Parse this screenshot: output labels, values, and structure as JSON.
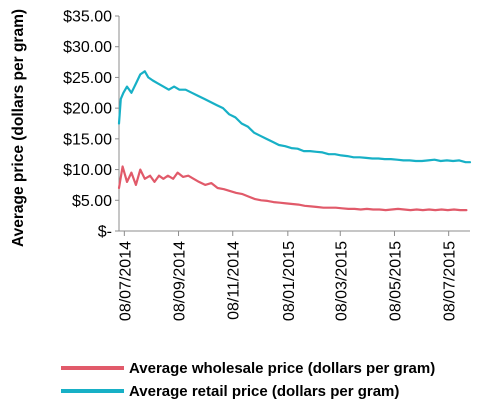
{
  "chart_data": {
    "type": "line",
    "title": "",
    "xlabel": "",
    "ylabel": "Average price (dollars per gram)",
    "ylim": [
      0,
      35
    ],
    "y_ticks": [
      0,
      5,
      10,
      15,
      20,
      25,
      30,
      35
    ],
    "y_tick_labels": [
      "$-",
      "$5.00",
      "$10.00",
      "$15.00",
      "$20.00",
      "$25.00",
      "$30.00",
      "$35.00"
    ],
    "x_range": [
      "2014-08-01",
      "2015-08-31"
    ],
    "x_ticks": [
      "2014-08-07",
      "2014-10-07",
      "2014-12-07",
      "2015-02-07",
      "2015-04-07",
      "2015-06-07",
      "2015-08-07"
    ],
    "x_tick_labels": [
      "08/07/2014",
      "08/09/2014",
      "08/11/2014",
      "08/01/2015",
      "08/03/2015",
      "08/05/2015",
      "08/07/2015"
    ],
    "grid": false,
    "legend_position": "bottom",
    "series": [
      {
        "name": "Average wholesale price (dollars per gram)",
        "color": "#e15a6a",
        "points": [
          [
            "2014-08-01",
            7.0
          ],
          [
            "2014-08-05",
            10.5
          ],
          [
            "2014-08-10",
            8.0
          ],
          [
            "2014-08-15",
            9.5
          ],
          [
            "2014-08-20",
            7.5
          ],
          [
            "2014-08-25",
            10.0
          ],
          [
            "2014-08-30",
            8.5
          ],
          [
            "2014-09-05",
            9.0
          ],
          [
            "2014-09-10",
            8.0
          ],
          [
            "2014-09-15",
            9.0
          ],
          [
            "2014-09-20",
            8.5
          ],
          [
            "2014-09-25",
            9.0
          ],
          [
            "2014-10-01",
            8.5
          ],
          [
            "2014-10-06",
            9.5
          ],
          [
            "2014-10-12",
            8.8
          ],
          [
            "2014-10-18",
            9.0
          ],
          [
            "2014-10-24",
            8.5
          ],
          [
            "2014-10-30",
            8.0
          ],
          [
            "2014-11-06",
            7.5
          ],
          [
            "2014-11-13",
            7.8
          ],
          [
            "2014-11-20",
            7.0
          ],
          [
            "2014-11-27",
            6.8
          ],
          [
            "2014-12-04",
            6.5
          ],
          [
            "2014-12-11",
            6.2
          ],
          [
            "2014-12-18",
            6.0
          ],
          [
            "2014-12-25",
            5.6
          ],
          [
            "2015-01-01",
            5.2
          ],
          [
            "2015-01-08",
            5.0
          ],
          [
            "2015-01-15",
            4.9
          ],
          [
            "2015-01-22",
            4.7
          ],
          [
            "2015-01-29",
            4.6
          ],
          [
            "2015-02-05",
            4.5
          ],
          [
            "2015-02-12",
            4.4
          ],
          [
            "2015-02-19",
            4.3
          ],
          [
            "2015-02-26",
            4.1
          ],
          [
            "2015-03-05",
            4.0
          ],
          [
            "2015-03-12",
            3.9
          ],
          [
            "2015-03-19",
            3.8
          ],
          [
            "2015-03-26",
            3.8
          ],
          [
            "2015-04-02",
            3.8
          ],
          [
            "2015-04-09",
            3.7
          ],
          [
            "2015-04-16",
            3.6
          ],
          [
            "2015-04-23",
            3.6
          ],
          [
            "2015-04-30",
            3.5
          ],
          [
            "2015-05-07",
            3.6
          ],
          [
            "2015-05-14",
            3.5
          ],
          [
            "2015-05-21",
            3.5
          ],
          [
            "2015-05-28",
            3.4
          ],
          [
            "2015-06-04",
            3.5
          ],
          [
            "2015-06-11",
            3.6
          ],
          [
            "2015-06-18",
            3.5
          ],
          [
            "2015-06-25",
            3.4
          ],
          [
            "2015-07-02",
            3.5
          ],
          [
            "2015-07-09",
            3.4
          ],
          [
            "2015-07-16",
            3.5
          ],
          [
            "2015-07-23",
            3.4
          ],
          [
            "2015-07-30",
            3.5
          ],
          [
            "2015-08-06",
            3.4
          ],
          [
            "2015-08-13",
            3.5
          ],
          [
            "2015-08-20",
            3.4
          ],
          [
            "2015-08-27",
            3.4
          ]
        ]
      },
      {
        "name": "Average retail price (dollars per gram)",
        "color": "#17b0c6",
        "points": [
          [
            "2014-08-01",
            17.5
          ],
          [
            "2014-08-03",
            21.5
          ],
          [
            "2014-08-06",
            22.5
          ],
          [
            "2014-08-10",
            23.5
          ],
          [
            "2014-08-15",
            22.5
          ],
          [
            "2014-08-20",
            24.0
          ],
          [
            "2014-08-25",
            25.5
          ],
          [
            "2014-08-30",
            26.0
          ],
          [
            "2014-09-03",
            25.0
          ],
          [
            "2014-09-08",
            24.5
          ],
          [
            "2014-09-14",
            24.0
          ],
          [
            "2014-09-20",
            23.5
          ],
          [
            "2014-09-26",
            23.0
          ],
          [
            "2014-10-02",
            23.5
          ],
          [
            "2014-10-08",
            23.0
          ],
          [
            "2014-10-15",
            23.0
          ],
          [
            "2014-10-22",
            22.5
          ],
          [
            "2014-10-29",
            22.0
          ],
          [
            "2014-11-05",
            21.5
          ],
          [
            "2014-11-12",
            21.0
          ],
          [
            "2014-11-19",
            20.5
          ],
          [
            "2014-11-26",
            20.0
          ],
          [
            "2014-12-03",
            19.0
          ],
          [
            "2014-12-10",
            18.5
          ],
          [
            "2014-12-17",
            17.5
          ],
          [
            "2014-12-24",
            17.0
          ],
          [
            "2014-12-31",
            16.0
          ],
          [
            "2015-01-07",
            15.5
          ],
          [
            "2015-01-14",
            15.0
          ],
          [
            "2015-01-21",
            14.5
          ],
          [
            "2015-01-28",
            14.0
          ],
          [
            "2015-02-04",
            13.8
          ],
          [
            "2015-02-11",
            13.5
          ],
          [
            "2015-02-18",
            13.4
          ],
          [
            "2015-02-25",
            13.0
          ],
          [
            "2015-03-04",
            13.0
          ],
          [
            "2015-03-11",
            12.9
          ],
          [
            "2015-03-18",
            12.8
          ],
          [
            "2015-03-25",
            12.5
          ],
          [
            "2015-04-01",
            12.5
          ],
          [
            "2015-04-08",
            12.3
          ],
          [
            "2015-04-15",
            12.2
          ],
          [
            "2015-04-22",
            12.0
          ],
          [
            "2015-04-29",
            12.0
          ],
          [
            "2015-05-06",
            11.9
          ],
          [
            "2015-05-13",
            11.8
          ],
          [
            "2015-05-20",
            11.8
          ],
          [
            "2015-05-27",
            11.7
          ],
          [
            "2015-06-03",
            11.7
          ],
          [
            "2015-06-10",
            11.6
          ],
          [
            "2015-06-17",
            11.5
          ],
          [
            "2015-06-24",
            11.5
          ],
          [
            "2015-07-01",
            11.4
          ],
          [
            "2015-07-08",
            11.4
          ],
          [
            "2015-07-15",
            11.5
          ],
          [
            "2015-07-22",
            11.6
          ],
          [
            "2015-07-29",
            11.4
          ],
          [
            "2015-08-05",
            11.5
          ],
          [
            "2015-08-12",
            11.4
          ],
          [
            "2015-08-19",
            11.5
          ],
          [
            "2015-08-26",
            11.2
          ],
          [
            "2015-08-31",
            11.2
          ]
        ]
      }
    ]
  }
}
